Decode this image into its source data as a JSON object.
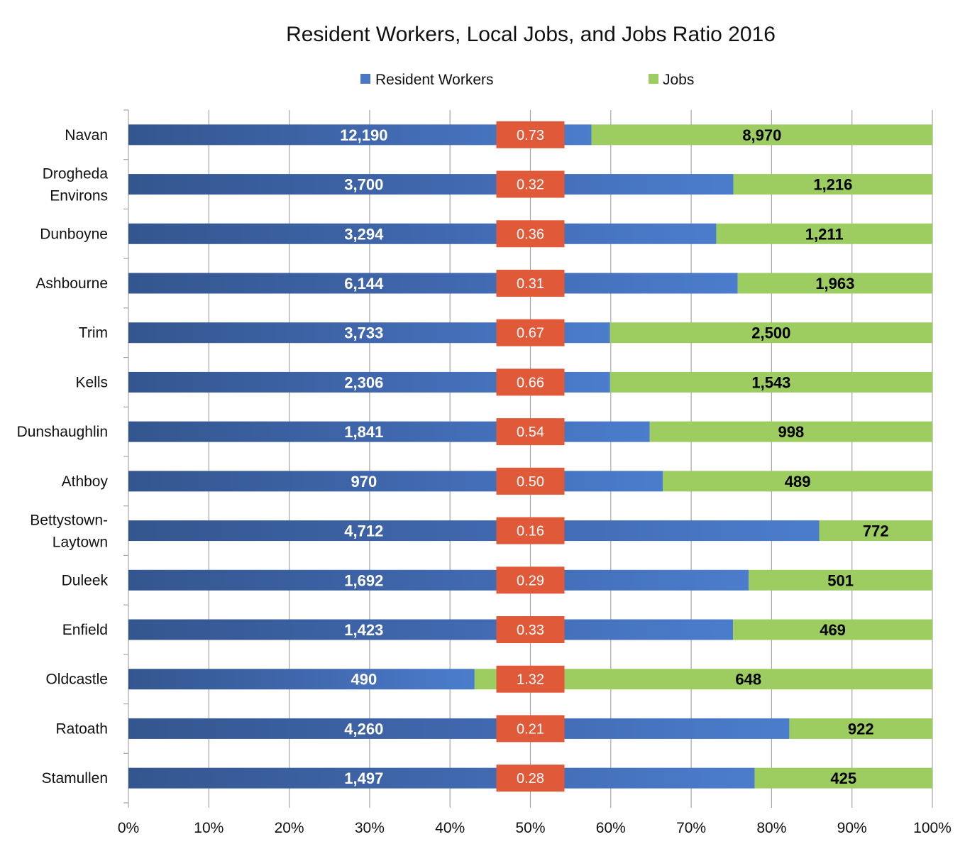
{
  "chart_data": {
    "type": "bar",
    "orientation": "horizontal",
    "stacking": "percent",
    "title": "Resident Workers, Local Jobs, and Jobs Ratio 2016",
    "xlabel": "",
    "ylabel": "",
    "xlim": [
      0,
      100
    ],
    "x_ticks": [
      "0%",
      "10%",
      "20%",
      "30%",
      "40%",
      "50%",
      "60%",
      "70%",
      "80%",
      "90%",
      "100%"
    ],
    "grid": "vertical",
    "legend_position": "top",
    "categories": [
      [
        "Navan"
      ],
      [
        "Drogheda",
        "Environs"
      ],
      [
        "Dunboyne"
      ],
      [
        "Ashbourne"
      ],
      [
        "Trim"
      ],
      [
        "Kells"
      ],
      [
        "Dunshaughlin"
      ],
      [
        "Athboy"
      ],
      [
        "Bettystown-",
        "Laytown"
      ],
      [
        "Duleek"
      ],
      [
        "Enfield"
      ],
      [
        "Oldcastle"
      ],
      [
        "Ratoath"
      ],
      [
        "Stamullen"
      ]
    ],
    "series": [
      {
        "name": "Resident Workers",
        "color": "#4a78c2",
        "values": [
          12190,
          3700,
          3294,
          6144,
          3733,
          2306,
          1841,
          970,
          4712,
          1692,
          1423,
          490,
          4260,
          1497
        ],
        "labels": [
          "12,190",
          "3,700",
          "3,294",
          "6,144",
          "3,733",
          "2,306",
          "1,841",
          "970",
          "4,712",
          "1,692",
          "1,423",
          "490",
          "4,260",
          "1,497"
        ]
      },
      {
        "name": "Jobs",
        "color": "#9dcc61",
        "values": [
          8970,
          1216,
          1211,
          1963,
          2500,
          1543,
          998,
          489,
          772,
          501,
          469,
          648,
          922,
          425
        ],
        "labels": [
          "8,970",
          "1,216",
          "1,211",
          "1,963",
          "2,500",
          "1,543",
          "998",
          "489",
          "772",
          "501",
          "469",
          "648",
          "922",
          "425"
        ]
      }
    ],
    "jobs_ratio": {
      "color": "#e05a3a",
      "labels": [
        "0.73",
        "0.32",
        "0.36",
        "0.31",
        "0.67",
        "0.66",
        "0.54",
        "0.50",
        "0.16",
        "0.29",
        "0.33",
        "1.32",
        "0.21",
        "0.28"
      ]
    }
  }
}
